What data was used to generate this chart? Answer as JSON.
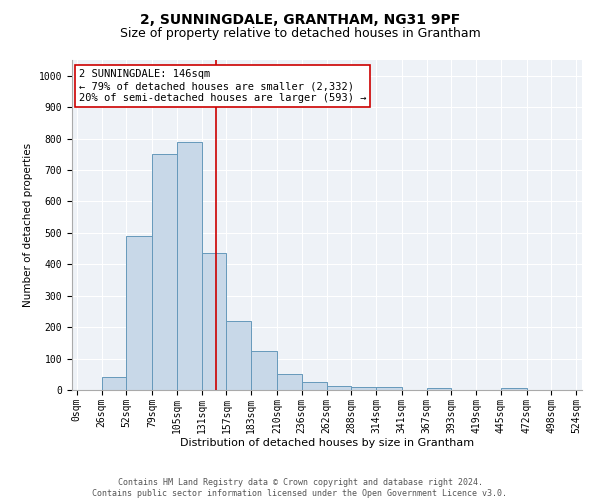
{
  "title1": "2, SUNNINGDALE, GRANTHAM, NG31 9PF",
  "title2": "Size of property relative to detached houses in Grantham",
  "xlabel": "Distribution of detached houses by size in Grantham",
  "ylabel": "Number of detached properties",
  "bin_edges": [
    0,
    26,
    52,
    79,
    105,
    131,
    157,
    183,
    210,
    236,
    262,
    288,
    314,
    341,
    367,
    393,
    419,
    445,
    472,
    498,
    524
  ],
  "bar_heights": [
    0,
    40,
    490,
    750,
    790,
    435,
    220,
    125,
    50,
    25,
    13,
    10,
    8,
    0,
    5,
    0,
    0,
    7,
    0,
    0
  ],
  "bar_color": "#c8d8e8",
  "bar_edge_color": "#6699bb",
  "bar_edge_width": 0.7,
  "vline_x": 146,
  "vline_color": "#cc0000",
  "annotation_text": "2 SUNNINGDALE: 146sqm\n← 79% of detached houses are smaller (2,332)\n20% of semi-detached houses are larger (593) →",
  "annotation_box_color": "#ffffff",
  "annotation_box_edge_color": "#cc0000",
  "ylim": [
    0,
    1050
  ],
  "yticks": [
    0,
    100,
    200,
    300,
    400,
    500,
    600,
    700,
    800,
    900,
    1000
  ],
  "bg_color": "#eef2f7",
  "footer_text": "Contains HM Land Registry data © Crown copyright and database right 2024.\nContains public sector information licensed under the Open Government Licence v3.0.",
  "title1_fontsize": 10,
  "title2_fontsize": 9,
  "xlabel_fontsize": 8,
  "ylabel_fontsize": 7.5,
  "tick_fontsize": 7,
  "annotation_fontsize": 7.5,
  "footer_fontsize": 6
}
